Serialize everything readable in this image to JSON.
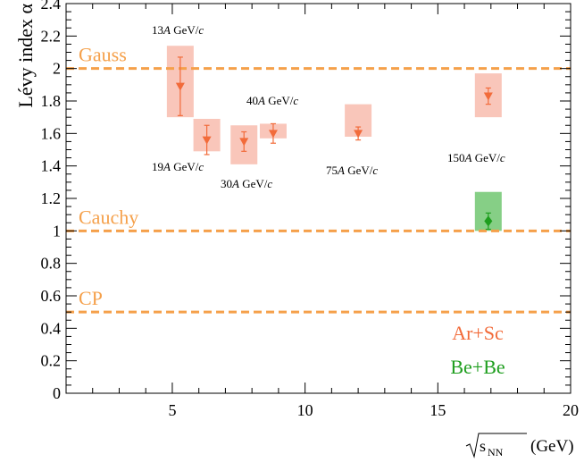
{
  "chart_data": {
    "type": "scatter",
    "xlabel": "(GeV)",
    "xlabel_root": "s",
    "xlabel_root_sub": "NN",
    "ylabel": "Lévy index α",
    "xlim": [
      1,
      20
    ],
    "ylim": [
      0,
      2.4
    ],
    "xticks": [
      5,
      10,
      15,
      20
    ],
    "xtick_labels": [
      "5",
      "10",
      "15",
      "20"
    ],
    "yticks": [
      0,
      0.2,
      0.4,
      0.6,
      0.8,
      1,
      1.2,
      1.4,
      1.6,
      1.8,
      2,
      2.2,
      2.4
    ],
    "ytick_labels": [
      "0",
      "0.2",
      "0.4",
      "0.6",
      "0.8",
      "1",
      "1.2",
      "1.4",
      "1.6",
      "1.8",
      "2",
      "2.2",
      "2.4"
    ],
    "grid": false,
    "reference_lines": [
      {
        "label": "Gauss",
        "y": 2.0,
        "color": "#f5a04a"
      },
      {
        "label": "Cauchy",
        "y": 1.0,
        "color": "#f5a04a"
      },
      {
        "label": "CP",
        "y": 0.5,
        "color": "#f5a04a"
      }
    ],
    "series": [
      {
        "name": "Ar+Sc",
        "color": "#f26b3a",
        "box_color": "#f9c6ba",
        "marker": "triangle-down",
        "points": [
          {
            "x": 5.3,
            "y": 1.89,
            "err": 0.18,
            "sys_low": 1.7,
            "sys_high": 2.14,
            "label_num": "13",
            "label_unit": "GeV/"
          },
          {
            "x": 6.3,
            "y": 1.56,
            "err": 0.09,
            "sys_low": 1.49,
            "sys_high": 1.69,
            "label_num": "19",
            "label_unit": "GeV/"
          },
          {
            "x": 7.7,
            "y": 1.55,
            "err": 0.06,
            "sys_low": 1.41,
            "sys_high": 1.65,
            "label_num": "30",
            "label_unit": "GeV/"
          },
          {
            "x": 8.8,
            "y": 1.6,
            "err": 0.06,
            "sys_low": 1.57,
            "sys_high": 1.66,
            "label_num": "40",
            "label_unit": "GeV/"
          },
          {
            "x": 12.0,
            "y": 1.6,
            "err": 0.04,
            "sys_low": 1.58,
            "sys_high": 1.78,
            "label_num": "75",
            "label_unit": "GeV/"
          },
          {
            "x": 16.9,
            "y": 1.83,
            "err": 0.05,
            "sys_low": 1.7,
            "sys_high": 1.97,
            "label_num": "150",
            "label_unit": "GeV/"
          }
        ]
      },
      {
        "name": "Be+Be",
        "color": "#1e9e1e",
        "box_color": "#86cf86",
        "marker": "diamond",
        "points": [
          {
            "x": 16.9,
            "y": 1.06,
            "err": 0.05,
            "sys_low": 1.0,
            "sys_high": 1.24
          }
        ]
      }
    ],
    "label_italic_a": "A",
    "label_italic_c": "c"
  }
}
